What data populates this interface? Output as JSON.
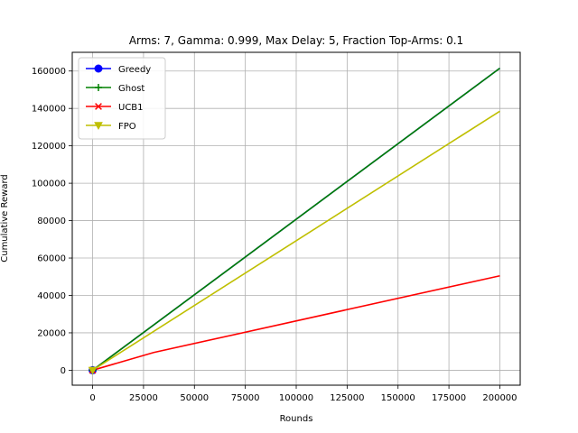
{
  "chart_data": {
    "type": "line",
    "title": "Arms: 7, Gamma: 0.999, Max Delay: 5, Fraction Top-Arms: 0.1",
    "xlabel": "Rounds",
    "ylabel": "Cumulative Reward",
    "xlim": [
      -10000,
      210000
    ],
    "ylim": [
      -8000,
      170000
    ],
    "xticks": [
      0,
      25000,
      50000,
      75000,
      100000,
      125000,
      150000,
      175000,
      200000
    ],
    "yticks": [
      0,
      20000,
      40000,
      60000,
      80000,
      100000,
      120000,
      140000,
      160000
    ],
    "grid": true,
    "legend_position": "top-left",
    "series": [
      {
        "name": "Greedy",
        "color": "#0000ff",
        "marker": "circle",
        "x": [
          0,
          200000
        ],
        "y": [
          0,
          161500
        ]
      },
      {
        "name": "Ghost",
        "color": "#008000",
        "marker": "plus",
        "x": [
          0,
          200000
        ],
        "y": [
          0,
          161500
        ]
      },
      {
        "name": "UCB1",
        "color": "#ff0000",
        "marker": "x",
        "x": [
          0,
          30000,
          200000
        ],
        "y": [
          0,
          9500,
          50500
        ]
      },
      {
        "name": "FPO",
        "color": "#bfbf00",
        "marker": "triangle-down",
        "x": [
          0,
          200000
        ],
        "y": [
          0,
          138500
        ]
      }
    ]
  }
}
